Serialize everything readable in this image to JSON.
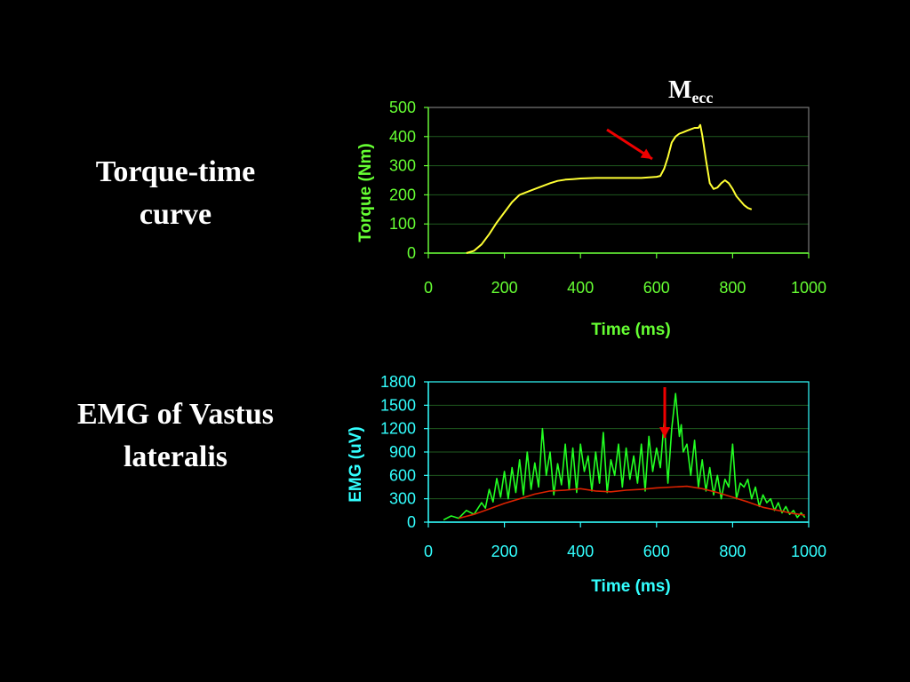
{
  "slide": {
    "label_top": [
      "Torque-time",
      "curve"
    ],
    "label_bottom": [
      "EMG of Vastus",
      "lateralis"
    ],
    "annotation": {
      "main": "M",
      "sub": "ecc"
    },
    "colors": {
      "background": "#000000",
      "text": "#ffffff",
      "torque_ink": "#66ff33",
      "emg_ink": "#33ffff",
      "torque_line": "#ffff33",
      "emg_line": "#22ff22",
      "emg_avg": "#dd2200",
      "arrow": "#ee0000"
    }
  },
  "chart_data": [
    {
      "type": "line",
      "xlabel": "Time (ms)",
      "ylabel": "Torque (Nm)",
      "xlim": [
        0,
        1000
      ],
      "ylim": [
        0,
        500
      ],
      "xticks": [
        0,
        200,
        400,
        600,
        800,
        1000
      ],
      "yticks": [
        0,
        100,
        200,
        300,
        400,
        500
      ],
      "grid": true,
      "series": [
        {
          "x": [
            100,
            120,
            140,
            160,
            180,
            200,
            220,
            240,
            260,
            280,
            300,
            320,
            340,
            360,
            380,
            400,
            440,
            480,
            520,
            560,
            580,
            600,
            610,
            620,
            630,
            640,
            650,
            660,
            670,
            680,
            690,
            700,
            710,
            715,
            720,
            730,
            740,
            750,
            760,
            770,
            780,
            790,
            800,
            810,
            820,
            830,
            840,
            850
          ],
          "y": [
            0,
            8,
            30,
            65,
            105,
            140,
            175,
            200,
            210,
            220,
            230,
            240,
            248,
            252,
            254,
            256,
            258,
            258,
            258,
            258,
            260,
            262,
            265,
            290,
            330,
            380,
            400,
            410,
            415,
            420,
            425,
            430,
            430,
            440,
            405,
            320,
            240,
            220,
            225,
            240,
            250,
            240,
            220,
            195,
            180,
            165,
            155,
            150
          ]
        }
      ]
    },
    {
      "type": "line",
      "xlabel": "Time (ms)",
      "ylabel": "EMG (uV)",
      "xlim": [
        0,
        1000
      ],
      "ylim": [
        0,
        1800
      ],
      "xticks": [
        0,
        200,
        400,
        600,
        800,
        1000
      ],
      "yticks": [
        0,
        300,
        600,
        900,
        1200,
        1500,
        1800
      ],
      "grid": true,
      "series": [
        {
          "x": [
            40,
            60,
            80,
            100,
            120,
            140,
            150,
            160,
            170,
            180,
            190,
            200,
            210,
            220,
            230,
            240,
            250,
            260,
            270,
            280,
            290,
            300,
            310,
            320,
            330,
            340,
            350,
            360,
            370,
            380,
            390,
            400,
            410,
            420,
            430,
            440,
            450,
            460,
            470,
            480,
            490,
            500,
            510,
            520,
            530,
            540,
            550,
            560,
            570,
            580,
            590,
            600,
            610,
            620,
            630,
            640,
            650,
            660,
            665,
            670,
            680,
            690,
            700,
            710,
            720,
            730,
            740,
            750,
            760,
            770,
            780,
            790,
            800,
            810,
            820,
            830,
            840,
            850,
            860,
            870,
            880,
            890,
            900,
            910,
            920,
            930,
            940,
            950,
            960,
            970,
            980,
            990
          ],
          "y": [
            30,
            80,
            50,
            150,
            100,
            250,
            180,
            420,
            260,
            560,
            320,
            650,
            300,
            700,
            380,
            800,
            350,
            900,
            420,
            760,
            450,
            1200,
            600,
            900,
            350,
            750,
            480,
            1000,
            420,
            950,
            380,
            1000,
            650,
            850,
            400,
            900,
            500,
            1150,
            380,
            800,
            600,
            1000,
            450,
            950,
            550,
            850,
            500,
            1000,
            400,
            1100,
            650,
            950,
            700,
            1300,
            500,
            1200,
            1650,
            1100,
            1250,
            900,
            1000,
            600,
            1050,
            450,
            800,
            400,
            700,
            350,
            600,
            300,
            550,
            450,
            1000,
            300,
            500,
            450,
            550,
            300,
            450,
            200,
            350,
            250,
            300,
            150,
            250,
            120,
            200,
            100,
            150,
            60,
            120,
            60
          ]
        },
        {
          "x": [
            80,
            120,
            160,
            200,
            240,
            280,
            320,
            360,
            400,
            440,
            480,
            520,
            560,
            600,
            640,
            680,
            720,
            760,
            800,
            840,
            880,
            920,
            960,
            990
          ],
          "y": [
            50,
            100,
            170,
            240,
            300,
            360,
            400,
            410,
            430,
            400,
            390,
            410,
            420,
            440,
            450,
            460,
            430,
            380,
            320,
            260,
            190,
            150,
            110,
            90
          ]
        }
      ]
    }
  ]
}
